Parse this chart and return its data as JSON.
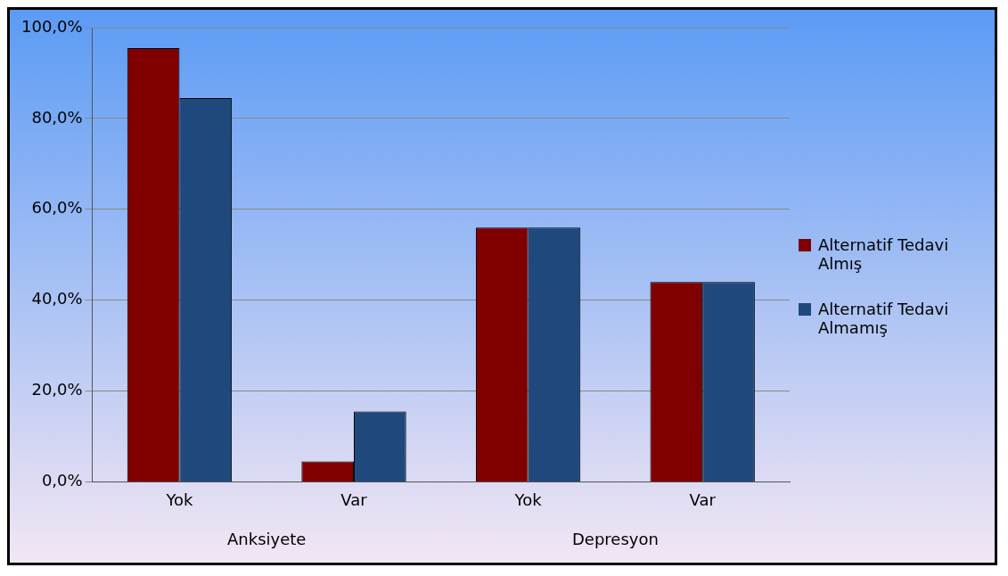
{
  "chart_data": {
    "type": "bar",
    "categories": [
      "Yok",
      "Var",
      "Yok",
      "Var"
    ],
    "series": [
      {
        "name": "Alternatif Tedavi Almış",
        "color": "#800000",
        "values": [
          95.5,
          4.5,
          56,
          44
        ]
      },
      {
        "name": "Alternatif Tedavi Almamış",
        "color": "#1f497d",
        "values": [
          84.5,
          15.5,
          56,
          44
        ]
      }
    ],
    "ylim": [
      0,
      100
    ],
    "yticks": [
      {
        "value": 0,
        "label": "0,0%"
      },
      {
        "value": 20,
        "label": "20,0%"
      },
      {
        "value": 40,
        "label": "40,0%"
      },
      {
        "value": 60,
        "label": "60,0%"
      },
      {
        "value": 80,
        "label": "80,0%"
      },
      {
        "value": 100,
        "label": "100,0%"
      }
    ],
    "grid": "y",
    "legend": "right",
    "annotations": [
      "Anksiyete",
      "Depresyon"
    ]
  }
}
